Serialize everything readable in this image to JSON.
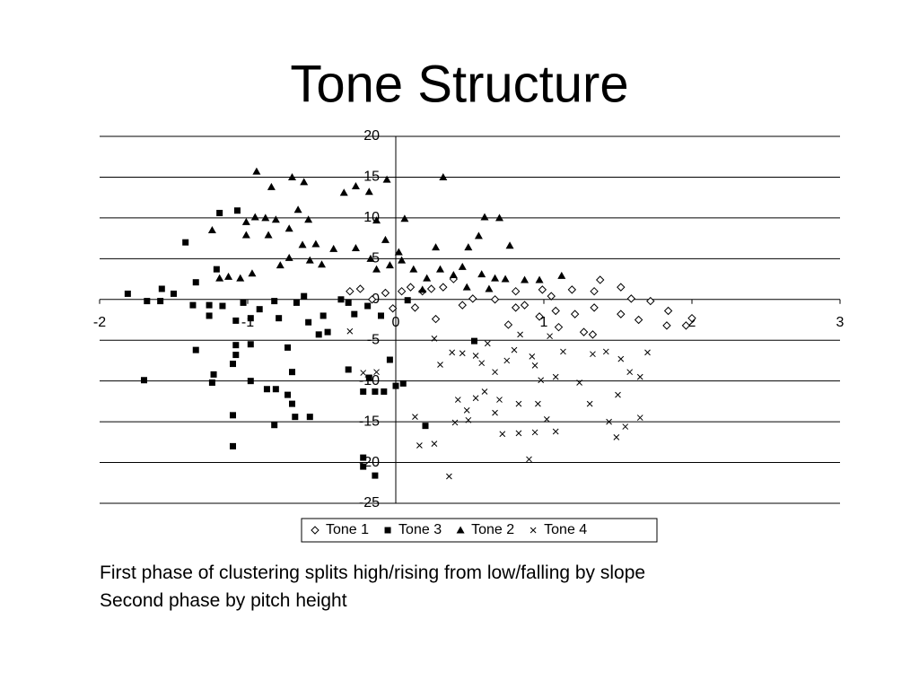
{
  "chart_data": {
    "type": "scatter",
    "title": "Tone Structure",
    "xlim": [
      -2,
      3
    ],
    "xticks": [
      -2,
      -1,
      0,
      1,
      2,
      3
    ],
    "ylim": [
      -25,
      20
    ],
    "yticks": [
      20,
      15,
      10,
      5,
      0,
      -5,
      -10,
      -15,
      -20,
      -25
    ],
    "grid": true,
    "legend": "bottom",
    "series": [
      {
        "name": "Tone 1",
        "color": "#000000",
        "marker": "diamond-open",
        "x": [
          -0.31,
          -0.24,
          -0.16,
          -0.07,
          0.04,
          0.1,
          0.18,
          0.24,
          0.32,
          0.39,
          0.45,
          0.52,
          0.67,
          0.81,
          0.87,
          0.99,
          1.05,
          1.19,
          1.34,
          1.38,
          1.52,
          1.59,
          1.72,
          1.84,
          2.0,
          1.96,
          1.83,
          1.64,
          1.52,
          1.34,
          1.21,
          1.08,
          0.97,
          0.81,
          0.76,
          1.1,
          1.27,
          1.33,
          0.27,
          -0.02,
          0.13
        ],
        "y": [
          1.0,
          1.3,
          0,
          0.8,
          1.0,
          1.5,
          1.0,
          1.3,
          1.5,
          2.5,
          -0.7,
          0.1,
          0,
          1.0,
          -0.7,
          1.2,
          0.4,
          1.2,
          1.0,
          2.4,
          1.5,
          0.1,
          -0.2,
          -1.4,
          -2.3,
          -3.2,
          -3.2,
          -2.5,
          -1.8,
          -1.0,
          -1.8,
          -1.4,
          -2.1,
          -1.0,
          -3.1,
          -3.4,
          -4.0,
          -4.3,
          -2.4,
          -1.1,
          -1.0
        ]
      },
      {
        "name": "Tone 3",
        "color": "#000000",
        "marker": "square",
        "x": [
          -1.81,
          -1.68,
          -1.59,
          -1.5,
          -1.37,
          -1.26,
          -1.17,
          -1.03,
          -0.92,
          -0.82,
          -0.67,
          -1.42,
          -1.19,
          -1.07,
          -1.21,
          -1.35,
          -1.58,
          -1.26,
          -1.08,
          -0.98,
          -0.79,
          -0.59,
          -1.35,
          -1.08,
          -0.98,
          -0.73,
          -0.52,
          -1.08,
          -1.1,
          -0.7,
          -1.23,
          -1.24,
          -1.7,
          -0.98,
          -0.87,
          -0.81,
          -0.73,
          -0.7,
          -0.68,
          -0.58,
          -0.82,
          -1.1,
          -1.1,
          -0.22,
          -0.14,
          -0.22,
          -0.22,
          -0.14,
          -0.08,
          0,
          0.05,
          -0.04,
          0.53,
          0.2,
          -0.32,
          -0.28,
          -0.19,
          -0.46,
          -0.37,
          -0.62,
          -0.49,
          -0.1,
          0.08,
          -0.32,
          -0.18
        ],
        "y": [
          0.7,
          -0.2,
          -0.2,
          0.7,
          -0.7,
          -0.7,
          -0.8,
          -0.4,
          -1.2,
          -0.2,
          -0.4,
          7.0,
          10.6,
          10.9,
          3.7,
          2.1,
          1.3,
          -2.0,
          -2.6,
          -2.3,
          -2.3,
          -2.8,
          -6.2,
          -5.6,
          -5.5,
          -5.9,
          -4.3,
          -6.8,
          -7.9,
          -8.9,
          -9.2,
          -10.2,
          -9.9,
          -10.0,
          -11.0,
          -11.0,
          -11.7,
          -12.8,
          -14.4,
          -14.4,
          -15.4,
          -14.2,
          -18.0,
          -20.5,
          -21.6,
          -19.4,
          -11.3,
          -11.3,
          -11.3,
          -10.6,
          -10.3,
          -7.4,
          -5.1,
          -15.5,
          -0.4,
          -1.8,
          -0.8,
          -4.0,
          0,
          0.4,
          -2.0,
          -2.0,
          -0.1,
          -8.6,
          -9.6
        ]
      },
      {
        "name": "Tone 2",
        "color": "#000000",
        "marker": "triangle",
        "x": [
          -0.94,
          -0.84,
          -0.7,
          -0.62,
          -0.35,
          -0.27,
          -0.18,
          -0.06,
          0.32,
          -1.01,
          -0.95,
          -0.88,
          -0.81,
          -0.66,
          -0.59,
          -0.13,
          0.06,
          0.6,
          0.7,
          -1.24,
          -1.01,
          -0.86,
          -0.72,
          -0.63,
          -0.54,
          -0.42,
          -0.27,
          -0.07,
          0.02,
          0.27,
          0.49,
          0.77,
          0.56,
          -1.05,
          -0.97,
          -0.78,
          -0.72,
          -0.58,
          -0.5,
          -0.17,
          -0.13,
          -0.04,
          0.04,
          0.12,
          0.21,
          0.3,
          0.39,
          0.45,
          0.58,
          0.67,
          0.74,
          0.87,
          0.97,
          1.12,
          -1.19,
          -1.13,
          0.18,
          0.48,
          0.63
        ],
        "y": [
          15.7,
          13.8,
          15.0,
          14.4,
          13.1,
          13.9,
          13.2,
          14.7,
          15.0,
          9.5,
          10.1,
          10.0,
          9.8,
          11.0,
          9.8,
          9.7,
          9.9,
          10.1,
          10.0,
          8.5,
          7.9,
          7.9,
          8.7,
          6.7,
          6.8,
          6.2,
          6.3,
          7.3,
          5.8,
          6.4,
          6.4,
          6.6,
          7.8,
          2.6,
          3.2,
          4.2,
          5.1,
          4.8,
          4.3,
          5.0,
          3.7,
          4.2,
          4.8,
          3.7,
          2.6,
          3.7,
          3.0,
          4.0,
          3.1,
          2.6,
          2.5,
          2.4,
          2.4,
          2.9,
          2.6,
          2.8,
          1.2,
          1.5,
          1.3
        ]
      },
      {
        "name": "Tone 4",
        "color": "#000000",
        "marker": "x",
        "x": [
          -0.31,
          0.13,
          0.16,
          0.26,
          0.36,
          0.26,
          0.3,
          0.38,
          0.45,
          0.54,
          0.58,
          0.62,
          0.67,
          0.75,
          0.8,
          0.84,
          0.92,
          0.94,
          0.98,
          1.04,
          1.08,
          1.13,
          1.24,
          1.33,
          1.42,
          1.52,
          1.58,
          1.65,
          1.7,
          0.42,
          0.48,
          0.54,
          0.6,
          0.67,
          0.7,
          0.83,
          0.96,
          1.02,
          0.72,
          0.83,
          0.94,
          1.08,
          1.31,
          1.44,
          1.5,
          1.55,
          1.65,
          1.49,
          0.9,
          0.4,
          0.49,
          -0.22,
          -0.13
        ],
        "y": [
          -3.9,
          -14.4,
          -17.9,
          -17.7,
          -21.7,
          -4.8,
          -8.0,
          -6.5,
          -6.6,
          -6.9,
          -7.8,
          -5.4,
          -8.9,
          -7.5,
          -6.2,
          -4.3,
          -7.0,
          -8.1,
          -9.9,
          -4.5,
          -9.5,
          -6.4,
          -10.2,
          -6.7,
          -6.4,
          -7.3,
          -8.9,
          -9.5,
          -6.5,
          -12.3,
          -13.6,
          -12.1,
          -11.3,
          -13.9,
          -12.3,
          -12.8,
          -12.8,
          -14.7,
          -16.5,
          -16.4,
          -16.3,
          -16.2,
          -12.8,
          -15.0,
          -11.7,
          -15.6,
          -14.5,
          -16.9,
          -19.6,
          -15.1,
          -14.8,
          -9.0,
          -8.9
        ]
      }
    ]
  },
  "notes": [
    "First phase of clustering splits high/rising from low/falling by slope",
    "Second phase by pitch height"
  ]
}
